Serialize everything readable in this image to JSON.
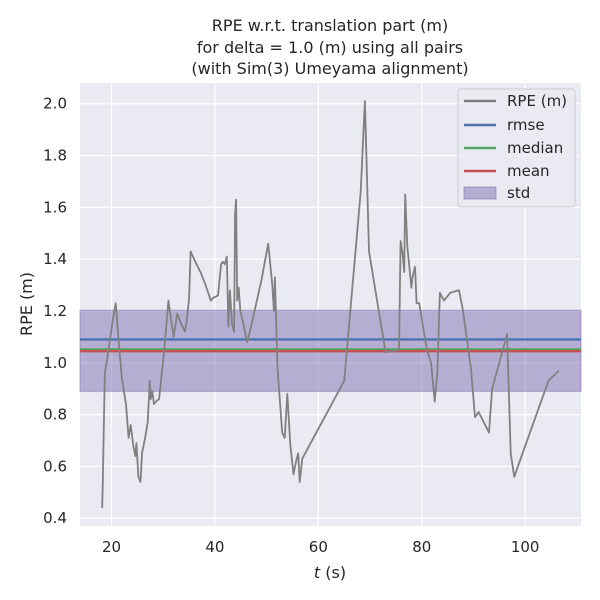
{
  "chart_data": {
    "type": "line",
    "title_lines": [
      "RPE w.r.t. translation part (m)",
      "for delta = 1.0 (m) using all pairs",
      "(with Sim(3) Umeyama alignment)"
    ],
    "xlabel_italic": "t",
    "xlabel_rest": " (s)",
    "ylabel": "RPE (m)",
    "xlim": [
      13.9,
      110.8
    ],
    "ylim": [
      0.37,
      2.08
    ],
    "x_ticks": [
      20,
      40,
      60,
      80,
      100
    ],
    "y_ticks": [
      0.4,
      0.6,
      0.8,
      1.0,
      1.2,
      1.4,
      1.6,
      1.8,
      2.0
    ],
    "x_tick_labels": [
      "20",
      "40",
      "60",
      "80",
      "100"
    ],
    "y_tick_labels": [
      "0.4",
      "0.6",
      "0.8",
      "1.0",
      "1.2",
      "1.4",
      "1.6",
      "1.8",
      "2.0"
    ],
    "grid": true,
    "legend_placement": "top-right",
    "series": [
      {
        "name": "RPE (m)",
        "color": "#808080",
        "x": [
          18.2,
          18.3,
          18.7,
          19.5,
          20.2,
          20.8,
          21.3,
          22.0,
          22.8,
          23.3,
          23.7,
          24.2,
          24.6,
          24.8,
          25.2,
          25.6,
          25.9,
          26.5,
          27.0,
          27.4,
          27.6,
          27.9,
          28.2,
          28.6,
          29.2,
          29.5,
          30.2,
          31.0,
          32.0,
          32.7,
          33.5,
          34.2,
          34.6,
          35.0,
          35.3,
          36.2,
          37.2,
          38.2,
          39.2,
          39.6,
          40.6,
          41.2,
          41.5,
          41.9,
          42.3,
          42.6,
          42.9,
          43.3,
          43.7,
          43.9,
          44.1,
          44.3,
          44.6,
          44.9,
          45.5,
          46.2,
          47.0,
          48.0,
          49.0,
          50.3,
          51.1,
          51.4,
          51.6,
          52.1,
          53.0,
          53.5,
          54.0,
          54.6,
          55.2,
          55.7,
          56.1,
          56.4,
          56.9,
          65.0,
          68.2,
          69.0,
          69.8,
          73.0,
          75.6,
          75.9,
          76.3,
          76.6,
          76.8,
          77.2,
          78.0,
          78.2,
          78.7,
          79.0,
          79.5,
          81.0,
          81.8,
          82.5,
          83.0,
          83.5,
          84.3,
          85.5,
          87.2,
          87.9,
          88.6,
          89.5,
          90.3,
          91.0,
          93.0,
          93.6,
          96.5,
          97.2,
          97.9,
          98.6,
          104.5,
          106.5
        ],
        "values": [
          0.44,
          0.52,
          0.96,
          1.06,
          1.16,
          1.23,
          1.1,
          0.94,
          0.84,
          0.71,
          0.76,
          0.68,
          0.64,
          0.69,
          0.56,
          0.54,
          0.65,
          0.71,
          0.77,
          0.93,
          0.86,
          0.89,
          0.84,
          0.85,
          0.86,
          0.92,
          1.05,
          1.24,
          1.1,
          1.19,
          1.15,
          1.12,
          1.17,
          1.25,
          1.43,
          1.39,
          1.35,
          1.3,
          1.24,
          1.25,
          1.26,
          1.38,
          1.39,
          1.38,
          1.41,
          1.14,
          1.28,
          1.15,
          1.12,
          1.58,
          1.63,
          1.24,
          1.29,
          1.2,
          1.15,
          1.08,
          1.14,
          1.23,
          1.32,
          1.46,
          1.3,
          1.2,
          1.33,
          0.98,
          0.73,
          0.71,
          0.88,
          0.68,
          0.57,
          0.62,
          0.65,
          0.54,
          0.63,
          0.93,
          1.66,
          2.01,
          1.43,
          1.04,
          1.05,
          1.47,
          1.42,
          1.35,
          1.65,
          1.45,
          1.29,
          1.33,
          1.37,
          1.23,
          1.23,
          1.05,
          1.0,
          0.85,
          0.96,
          1.27,
          1.24,
          1.27,
          1.28,
          1.21,
          1.11,
          0.98,
          0.79,
          0.81,
          0.73,
          0.9,
          1.11,
          0.65,
          0.56,
          0.6,
          0.93,
          0.97
        ]
      },
      {
        "name": "rmse",
        "color": "#4c72b0",
        "value": 1.09
      },
      {
        "name": "median",
        "color": "#55a868",
        "value": 1.052
      },
      {
        "name": "mean",
        "color": "#c44e52",
        "value": 1.045
      },
      {
        "name": "std",
        "color": "#8172b2",
        "band": [
          0.89,
          1.203
        ]
      }
    ]
  },
  "colors": {
    "plot_background": "#eaeaf2",
    "grid": "#ffffff",
    "text": "#262626"
  }
}
